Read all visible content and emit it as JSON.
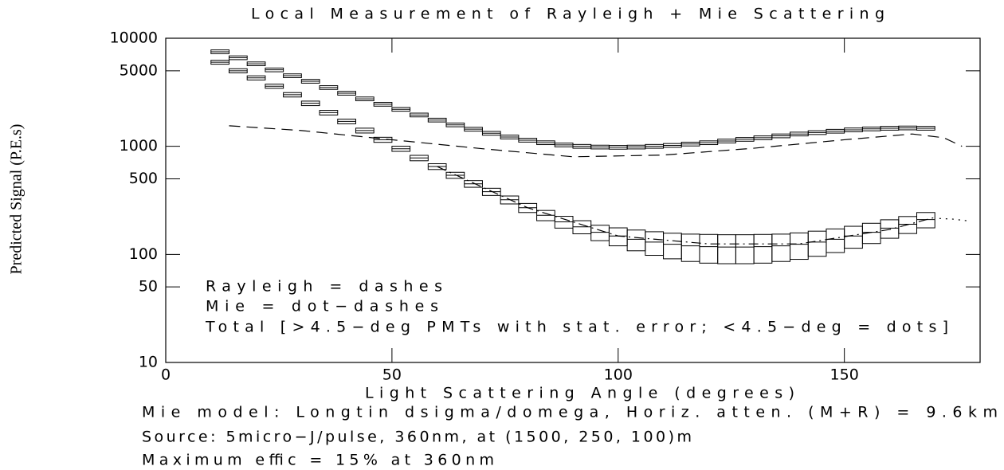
{
  "chart_data": {
    "type": "line",
    "title": "Local Measurement of Rayleigh + Mie Scattering",
    "x_label": "Light Scattering Angle (degrees)",
    "y_label": "Predicted Signal (P.E.s)",
    "annotations": [
      "Rayleigh = dashes",
      "Mie = dot−dashes",
      "Total [>4.5−deg PMTs with stat. error; <4.5−deg = dots]"
    ],
    "notes": [
      "Mie model: Longtin dsigma/domega, Horiz. atten. (M+R) = 9.6km",
      "Source: 5micro−J/pulse, 360nm, at (1500, 250, 100)m",
      "Maximum effic = 15% at 360nm"
    ],
    "xlim": [
      0,
      180
    ],
    "xticks": [
      0,
      50,
      100,
      150
    ],
    "ylim": [
      10,
      10000
    ],
    "yticks": [
      10,
      50,
      100,
      500,
      1000,
      5000,
      10000
    ],
    "log_y": true,
    "series": [
      {
        "style": "errorbar",
        "color": "#000000",
        "x": [
          12,
          16,
          20,
          24,
          28,
          32,
          36,
          40,
          44,
          48,
          52,
          56,
          60,
          64,
          68,
          72,
          76,
          80,
          84,
          88,
          92,
          96,
          100,
          104,
          108,
          112,
          116,
          120,
          124,
          128,
          132,
          136,
          140,
          144,
          148,
          152,
          156,
          160,
          164,
          168
        ],
        "values": [
          7500,
          6600,
          5800,
          5100,
          4500,
          4000,
          3500,
          3100,
          2750,
          2450,
          2200,
          1950,
          1750,
          1580,
          1440,
          1320,
          1220,
          1140,
          1080,
          1030,
          1000,
          985,
          980,
          985,
          1000,
          1020,
          1050,
          1080,
          1120,
          1160,
          1200,
          1250,
          1300,
          1340,
          1380,
          1420,
          1450,
          1470,
          1480,
          1470
        ],
        "errors": [
          300,
          264,
          232,
          204,
          180,
          160,
          140,
          124,
          110,
          98,
          88,
          78,
          70,
          63,
          58,
          53,
          49,
          46,
          43,
          41,
          40,
          39,
          39,
          39,
          40,
          41,
          42,
          43,
          45,
          46,
          48,
          50,
          52,
          54,
          55,
          57,
          58,
          59,
          59,
          59
        ]
      },
      {
        "style": "errorbar",
        "color": "#000000",
        "x": [
          12,
          16,
          20,
          24,
          28,
          32,
          36,
          40,
          44,
          48,
          52,
          56,
          60,
          64,
          68,
          72,
          76,
          80,
          84,
          88,
          92,
          96,
          100,
          104,
          108,
          112,
          116,
          120,
          124,
          128,
          132,
          136,
          140,
          144,
          148,
          152,
          156,
          160,
          164,
          168
        ],
        "values": [
          6000,
          5000,
          4300,
          3600,
          3000,
          2500,
          2050,
          1700,
          1400,
          1150,
          950,
          780,
          650,
          540,
          450,
          380,
          320,
          270,
          230,
          200,
          180,
          160,
          148,
          138,
          130,
          124,
          120,
          118,
          117,
          117,
          118,
          120,
          124,
          130,
          138,
          148,
          160,
          175,
          190,
          210
        ],
        "errors": [
          250,
          220,
          190,
          160,
          140,
          120,
          100,
          85,
          72,
          62,
          52,
          45,
          40,
          35,
          32,
          29,
          27,
          26,
          25,
          25,
          25,
          26,
          28,
          30,
          32,
          33,
          34,
          35,
          35,
          35,
          35,
          34,
          34,
          34,
          34,
          34,
          34,
          34,
          34,
          34
        ]
      },
      {
        "style": "dashes",
        "color": "#000000",
        "x": [
          14,
          30,
          50,
          70,
          90,
          110,
          130,
          150,
          165,
          172,
          176
        ],
        "values": [
          1550,
          1400,
          1150,
          950,
          800,
          830,
          960,
          1150,
          1300,
          1200,
          1000
        ]
      },
      {
        "style": "dot-dashes",
        "color": "#000000",
        "x": [
          60,
          80,
          100,
          120,
          140,
          160,
          170
        ],
        "values": [
          650,
          270,
          148,
          125,
          125,
          170,
          220
        ]
      },
      {
        "style": "dots",
        "color": "#000000",
        "x": [
          171,
          174,
          177
        ],
        "values": [
          215,
          212,
          205
        ]
      }
    ]
  }
}
